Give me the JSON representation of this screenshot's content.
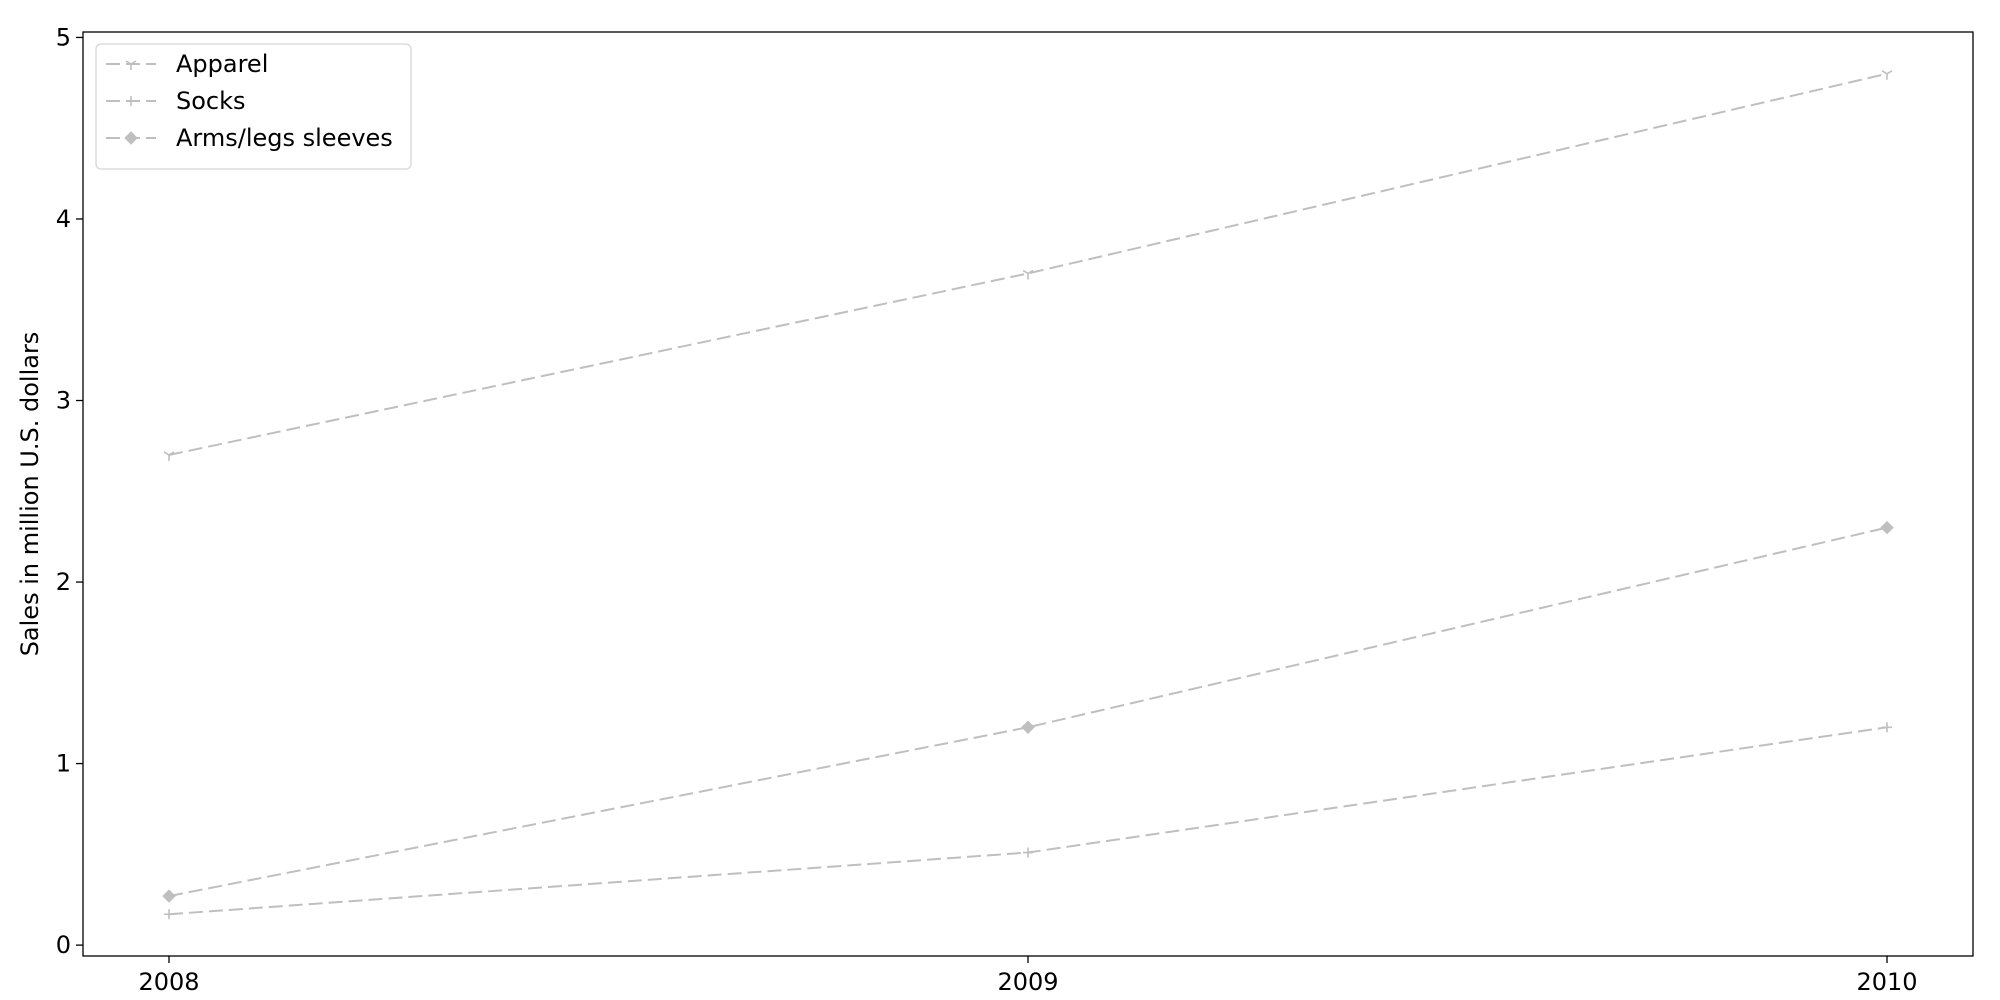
{
  "chart_data": {
    "type": "line",
    "title": "",
    "xlabel": "",
    "ylabel": "Sales in million U.S. dollars",
    "x": [
      2008,
      2009,
      2010
    ],
    "x_tick_labels": [
      "2008",
      "2009",
      "2010"
    ],
    "ylim": [
      -0.06,
      5.03
    ],
    "y_ticks": [
      0,
      1,
      2,
      3,
      4,
      5
    ],
    "y_tick_labels": [
      "0",
      "1",
      "2",
      "3",
      "4",
      "5"
    ],
    "grid": false,
    "legend_position": "top-left",
    "series": [
      {
        "name": "Apparel",
        "values": [
          2.7,
          3.7,
          4.8
        ],
        "color": "#bfbfbf",
        "marker": "tri-down",
        "line_style": "dashed"
      },
      {
        "name": "Socks",
        "values": [
          0.17,
          0.51,
          1.2
        ],
        "color": "#bfbfbf",
        "marker": "plus",
        "line_style": "dashed"
      },
      {
        "name": "Arms/legs sleeves",
        "values": [
          0.27,
          1.2,
          2.3
        ],
        "color": "#bfbfbf",
        "marker": "diamond",
        "line_style": "dashed"
      }
    ]
  }
}
